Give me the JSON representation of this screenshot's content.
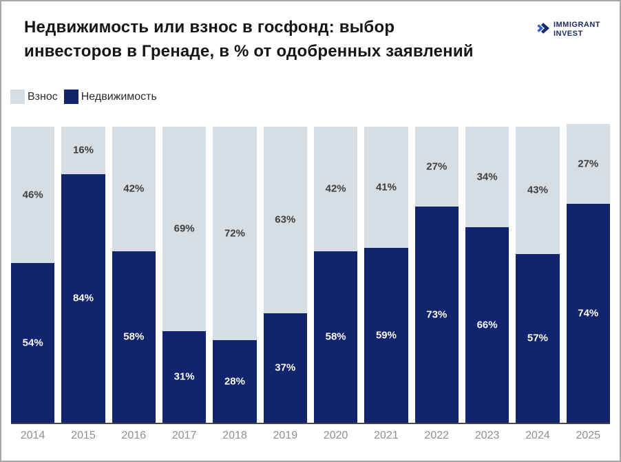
{
  "header": {
    "title_line1": "Недвижимость или взнос в госфонд: выбор",
    "title_line2": "инвесторов в Гренаде, в % от одобренных заявлений",
    "logo_line1": "IMMIGRANT",
    "logo_line2": "INVEST"
  },
  "legend": [
    {
      "label": "Взнос",
      "color": "#d7dee3"
    },
    {
      "label": "Недвижимость",
      "color": "#12246d"
    }
  ],
  "chart_data": {
    "type": "bar",
    "stacked": true,
    "title": "Недвижимость или взнос в госфонд: выбор инвесторов в Гренаде, в % от одобренных заявлений",
    "categories": [
      "2014",
      "2015",
      "2016",
      "2017",
      "2018",
      "2019",
      "2020",
      "2021",
      "2022",
      "2023",
      "2024",
      "2025"
    ],
    "series": [
      {
        "name": "Взнос",
        "color": "#d7dee3",
        "label_color": "#3e3e3e",
        "values": [
          46,
          16,
          42,
          69,
          72,
          63,
          42,
          41,
          27,
          34,
          43,
          27
        ]
      },
      {
        "name": "Недвижимость",
        "color": "#12246d",
        "label_color": "#ffffff",
        "values": [
          54,
          84,
          58,
          31,
          28,
          37,
          58,
          59,
          73,
          66,
          57,
          74
        ]
      }
    ],
    "value_suffix": "%",
    "ylim": [
      0,
      100
    ],
    "grid": false,
    "legend_position": "top-left",
    "axis_line_color": "#454545",
    "x_tick_color": "#8f8f8f"
  }
}
